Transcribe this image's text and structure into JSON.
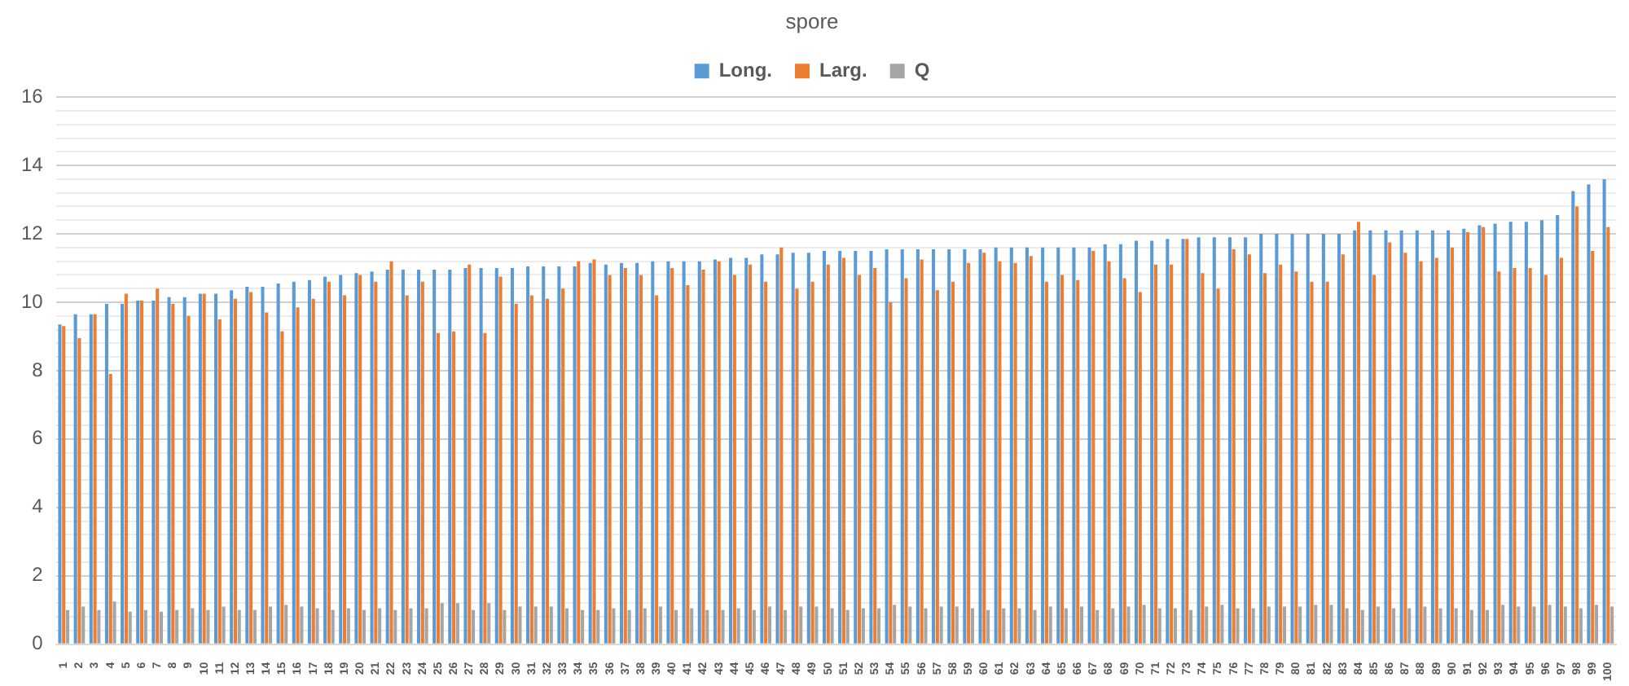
{
  "chart_data": {
    "type": "bar",
    "title": "spore",
    "categories": [
      "1",
      "2",
      "3",
      "4",
      "5",
      "6",
      "7",
      "8",
      "9",
      "10",
      "11",
      "12",
      "13",
      "14",
      "15",
      "16",
      "17",
      "18",
      "19",
      "20",
      "21",
      "22",
      "23",
      "24",
      "25",
      "26",
      "27",
      "28",
      "29",
      "30",
      "31",
      "32",
      "33",
      "34",
      "35",
      "36",
      "37",
      "38",
      "39",
      "40",
      "41",
      "42",
      "43",
      "44",
      "45",
      "46",
      "47",
      "48",
      "49",
      "50",
      "51",
      "52",
      "53",
      "54",
      "55",
      "56",
      "57",
      "58",
      "59",
      "60",
      "61",
      "62",
      "63",
      "64",
      "65",
      "66",
      "67",
      "68",
      "69",
      "70",
      "71",
      "72",
      "73",
      "74",
      "75",
      "76",
      "77",
      "78",
      "79",
      "80",
      "81",
      "82",
      "83",
      "84",
      "85",
      "86",
      "87",
      "88",
      "89",
      "90",
      "91",
      "92",
      "93",
      "94",
      "95",
      "96",
      "97",
      "98",
      "99",
      "100"
    ],
    "series": [
      {
        "name": "Long.",
        "color": "#5b9bd5",
        "values": [
          9.35,
          9.65,
          9.65,
          9.95,
          9.95,
          10.05,
          10.05,
          10.15,
          10.15,
          10.25,
          10.25,
          10.35,
          10.45,
          10.45,
          10.55,
          10.6,
          10.65,
          10.75,
          10.8,
          10.85,
          10.9,
          10.95,
          10.95,
          10.95,
          10.95,
          10.95,
          11.0,
          11.0,
          11.0,
          11.0,
          11.05,
          11.05,
          11.05,
          11.05,
          11.15,
          11.1,
          11.15,
          11.15,
          11.2,
          11.2,
          11.2,
          11.2,
          11.25,
          11.3,
          11.3,
          11.4,
          11.4,
          11.45,
          11.45,
          11.5,
          11.5,
          11.5,
          11.5,
          11.55,
          11.55,
          11.55,
          11.55,
          11.55,
          11.55,
          11.55,
          11.6,
          11.6,
          11.6,
          11.6,
          11.6,
          11.6,
          11.6,
          11.7,
          11.7,
          11.8,
          11.8,
          11.85,
          11.85,
          11.9,
          11.9,
          11.9,
          11.9,
          12.0,
          12.0,
          12.0,
          12.0,
          12.0,
          12.0,
          12.1,
          12.1,
          12.1,
          12.1,
          12.1,
          12.1,
          12.1,
          12.15,
          12.25,
          12.3,
          12.35,
          12.35,
          12.4,
          12.55,
          13.25,
          13.45,
          13.6
        ]
      },
      {
        "name": "Larg.",
        "color": "#ed7d31",
        "values": [
          9.3,
          8.95,
          9.65,
          7.9,
          10.25,
          10.05,
          10.4,
          9.95,
          9.6,
          10.25,
          9.5,
          10.1,
          10.3,
          9.7,
          9.15,
          9.85,
          10.1,
          10.6,
          10.2,
          10.8,
          10.6,
          11.2,
          10.2,
          10.6,
          9.1,
          9.15,
          11.1,
          9.1,
          10.75,
          9.95,
          10.2,
          10.1,
          10.4,
          11.2,
          11.25,
          10.8,
          11.0,
          10.8,
          10.2,
          11.0,
          10.5,
          10.95,
          11.2,
          10.8,
          11.1,
          10.6,
          11.6,
          10.4,
          10.6,
          11.1,
          11.3,
          10.8,
          11.0,
          10.0,
          10.7,
          11.25,
          10.35,
          10.6,
          11.15,
          11.45,
          11.2,
          11.15,
          11.35,
          10.6,
          10.8,
          10.65,
          11.5,
          11.2,
          10.7,
          10.3,
          11.1,
          11.1,
          11.85,
          10.85,
          10.4,
          11.55,
          11.4,
          10.85,
          11.1,
          10.9,
          10.6,
          10.6,
          11.4,
          12.35,
          10.8,
          11.75,
          11.45,
          11.2,
          11.3,
          11.6,
          12.05,
          12.2,
          10.9,
          11.0,
          11.0,
          10.8,
          11.3,
          12.8,
          11.5,
          12.2
        ]
      },
      {
        "name": "Q",
        "color": "#a5a5a5",
        "values": [
          1.0,
          1.1,
          1.0,
          1.25,
          0.95,
          1.0,
          0.95,
          1.0,
          1.05,
          1.0,
          1.1,
          1.0,
          1.0,
          1.1,
          1.15,
          1.1,
          1.05,
          1.0,
          1.05,
          1.0,
          1.05,
          1.0,
          1.05,
          1.05,
          1.2,
          1.2,
          1.0,
          1.2,
          1.0,
          1.1,
          1.1,
          1.1,
          1.05,
          1.0,
          1.0,
          1.05,
          1.0,
          1.05,
          1.1,
          1.0,
          1.05,
          1.0,
          1.0,
          1.05,
          1.0,
          1.1,
          1.0,
          1.1,
          1.1,
          1.05,
          1.0,
          1.05,
          1.05,
          1.15,
          1.1,
          1.05,
          1.1,
          1.1,
          1.05,
          1.0,
          1.05,
          1.05,
          1.0,
          1.1,
          1.05,
          1.1,
          1.0,
          1.05,
          1.1,
          1.15,
          1.05,
          1.05,
          1.0,
          1.1,
          1.15,
          1.05,
          1.05,
          1.1,
          1.1,
          1.1,
          1.15,
          1.15,
          1.05,
          1.0,
          1.1,
          1.05,
          1.05,
          1.1,
          1.05,
          1.05,
          1.0,
          1.0,
          1.15,
          1.1,
          1.1,
          1.15,
          1.1,
          1.05,
          1.15,
          1.1
        ]
      }
    ],
    "ylim": [
      0,
      16
    ],
    "yticks": [
      0,
      {
        "value": 0.4,
        "label": null
      },
      {
        "value": 0.8,
        "label": null
      },
      {
        "value": 1.2,
        "label": null
      },
      {
        "value": 1.6,
        "label": null
      },
      2,
      {
        "value": 2.4,
        "label": null
      },
      {
        "value": 2.8,
        "label": null
      },
      {
        "value": 3.2,
        "label": null
      },
      {
        "value": 3.6,
        "label": null
      },
      4,
      {
        "value": 4.4,
        "label": null
      },
      {
        "value": 4.8,
        "label": null
      },
      {
        "value": 5.2,
        "label": null
      },
      {
        "value": 5.6,
        "label": null
      },
      6,
      {
        "value": 6.4,
        "label": null
      },
      {
        "value": 6.8,
        "label": null
      },
      {
        "value": 7.2,
        "label": null
      },
      {
        "value": 7.6,
        "label": null
      },
      8,
      {
        "value": 8.4,
        "label": null
      },
      {
        "value": 8.8,
        "label": null
      },
      {
        "value": 9.2,
        "label": null
      },
      {
        "value": 9.6,
        "label": null
      },
      10,
      {
        "value": 10.4,
        "label": null
      },
      {
        "value": 10.8,
        "label": null
      },
      {
        "value": 11.2,
        "label": null
      },
      {
        "value": 11.6,
        "label": null
      },
      12,
      {
        "value": 12.4,
        "label": null
      },
      {
        "value": 12.8,
        "label": null
      },
      {
        "value": 13.2,
        "label": null
      },
      {
        "value": 13.6,
        "label": null
      },
      14,
      {
        "value": 14.4,
        "label": null
      },
      {
        "value": 14.8,
        "label": null
      },
      {
        "value": 15.2,
        "label": null
      },
      {
        "value": 15.6,
        "label": null
      },
      16
    ],
    "grid": "y",
    "legend": "top"
  }
}
